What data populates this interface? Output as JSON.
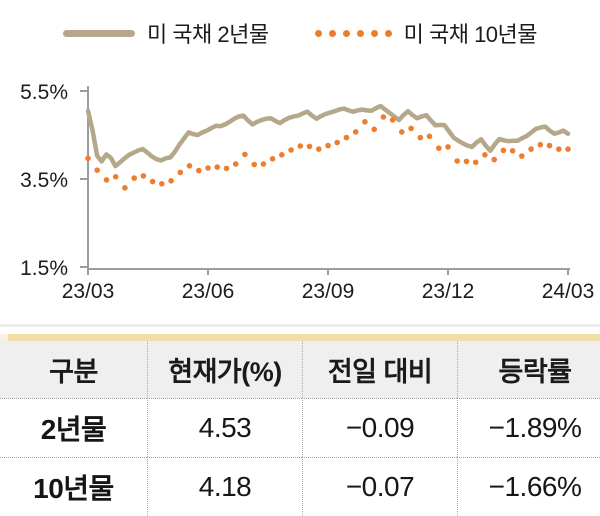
{
  "legend": {
    "series1_label": "미 국채 2년물",
    "series2_label": "미 국채 10년물"
  },
  "chart_data": {
    "type": "line",
    "title": "",
    "xlabel": "",
    "ylabel": "",
    "ylim": [
      1.5,
      5.5
    ],
    "grid": false,
    "legend_position": "top",
    "x_ticks": [
      "23/03",
      "23/06",
      "23/09",
      "23/12",
      "24/03"
    ],
    "y_ticks": [
      "5.5%",
      "3.5%",
      "1.5%"
    ],
    "y_tick_values": [
      5.5,
      3.5,
      1.5
    ],
    "series": [
      {
        "name": "미 국채 2년물",
        "color": "#b5a78a",
        "style": "solid",
        "values": [
          5.05,
          4.6,
          4.03,
          3.9,
          4.06,
          3.98,
          3.79,
          3.88,
          3.97,
          4.05,
          4.1,
          4.15,
          4.18,
          4.1,
          4.01,
          3.95,
          3.92,
          3.97,
          3.99,
          4.12,
          4.28,
          4.42,
          4.56,
          4.52,
          4.5,
          4.56,
          4.6,
          4.66,
          4.71,
          4.7,
          4.74,
          4.8,
          4.87,
          4.92,
          4.94,
          4.83,
          4.74,
          4.8,
          4.84,
          4.87,
          4.88,
          4.82,
          4.77,
          4.84,
          4.89,
          4.92,
          4.94,
          4.99,
          5.03,
          4.94,
          4.87,
          4.93,
          4.98,
          5.01,
          5.04,
          5.08,
          5.1,
          5.06,
          5.03,
          5.06,
          5.08,
          5.06,
          5.05,
          5.11,
          5.16,
          5.08,
          5.0,
          4.92,
          4.84,
          4.95,
          5.04,
          4.95,
          4.88,
          4.92,
          4.95,
          4.83,
          4.72,
          4.73,
          4.72,
          4.58,
          4.44,
          4.37,
          4.31,
          4.26,
          4.23,
          4.33,
          4.4,
          4.26,
          4.14,
          4.29,
          4.41,
          4.38,
          4.36,
          4.37,
          4.37,
          4.43,
          4.48,
          4.56,
          4.64,
          4.67,
          4.69,
          4.6,
          4.53,
          4.56,
          4.6,
          4.53
        ]
      },
      {
        "name": "미 국채 10년물",
        "color": "#ee7d30",
        "style": "dotted",
        "values": [
          3.97,
          3.7,
          3.48,
          3.55,
          3.3,
          3.52,
          3.57,
          3.44,
          3.39,
          3.46,
          3.65,
          3.8,
          3.69,
          3.75,
          3.77,
          3.74,
          3.84,
          4.06,
          3.83,
          3.84,
          3.96,
          4.05,
          4.16,
          4.25,
          4.24,
          4.18,
          4.26,
          4.33,
          4.44,
          4.57,
          4.8,
          4.63,
          4.91,
          4.84,
          4.57,
          4.65,
          4.44,
          4.47,
          4.2,
          4.23,
          3.91,
          3.9,
          3.88,
          4.05,
          3.94,
          4.15,
          4.14,
          4.02,
          4.18,
          4.28,
          4.26,
          4.18,
          4.18
        ]
      }
    ]
  },
  "table": {
    "accent_color": "#f1dda6",
    "header_bg": "#efefef",
    "columns": [
      "구분",
      "현재가(%)",
      "전일 대비",
      "등락률"
    ],
    "rows": [
      {
        "label": "2년물",
        "price": "4.53",
        "change": "−0.09",
        "pct": "−1.89%"
      },
      {
        "label": "10년물",
        "price": "4.18",
        "change": "−0.07",
        "pct": "−1.66%"
      }
    ]
  }
}
